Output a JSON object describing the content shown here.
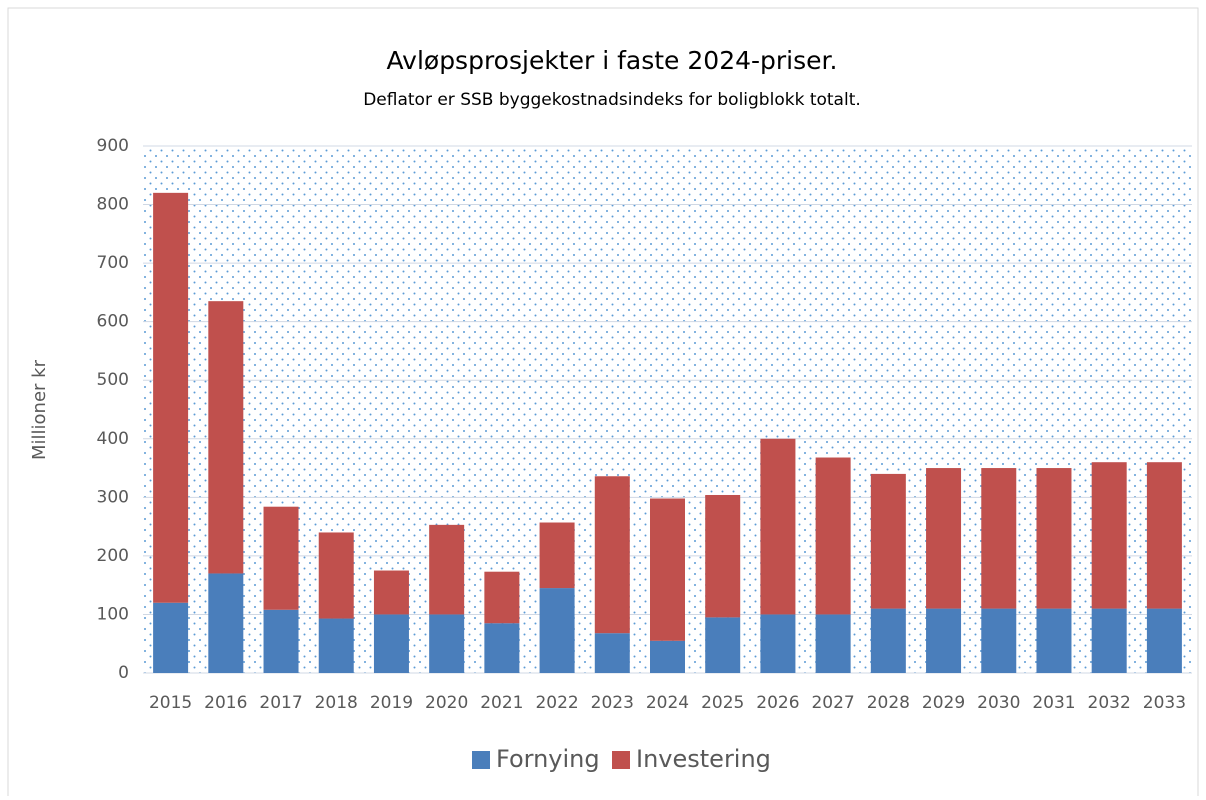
{
  "chart_data": {
    "type": "stacked_bar",
    "title": "Avløpsprosjekter i faste 2024-priser.",
    "subtitle": "Deflator er SSB byggekostnadsindeks for boligblokk totalt.",
    "y_label": "Millioner kr",
    "categories": [
      "2015",
      "2016",
      "2017",
      "2018",
      "2019",
      "2020",
      "2021",
      "2022",
      "2023",
      "2024",
      "2025",
      "2026",
      "2027",
      "2028",
      "2029",
      "2030",
      "2031",
      "2032",
      "2033"
    ],
    "series": [
      {
        "name": "Fornying",
        "color": "#4a7ebb",
        "values": [
          120,
          170,
          108,
          93,
          100,
          100,
          85,
          145,
          68,
          55,
          95,
          100,
          100,
          110,
          110,
          110,
          110,
          110,
          110
        ]
      },
      {
        "name": "Investering",
        "color": "#c0504d",
        "values": [
          700,
          465,
          176,
          147,
          75,
          153,
          88,
          112,
          268,
          243,
          209,
          300,
          268,
          230,
          240,
          240,
          240,
          250,
          250
        ]
      }
    ],
    "ylim": [
      0,
      900
    ],
    "yticks": [
      0,
      100,
      200,
      300,
      400,
      500,
      600,
      700,
      800,
      900
    ],
    "grid": true,
    "legend": "bottom"
  }
}
